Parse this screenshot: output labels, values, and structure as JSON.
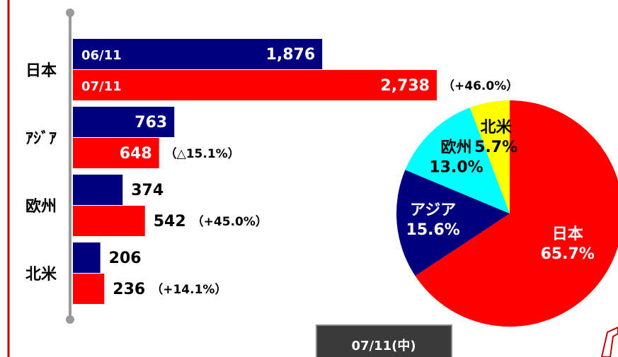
{
  "chart_data": [
    {
      "type": "hbar",
      "categories": [
        "日本",
        "ｱｼﾞｱ",
        "欧州",
        "北米"
      ],
      "series": [
        {
          "name": "06/11",
          "color": "#00007f",
          "values": [
            1876,
            763,
            374,
            206
          ],
          "value_labels": [
            "1,876",
            "763",
            "374",
            "206"
          ]
        },
        {
          "name": "07/11",
          "color": "#ff0000",
          "values": [
            2738,
            648,
            542,
            236
          ],
          "value_labels": [
            "2,738",
            "648",
            "542",
            "236"
          ],
          "annotations": [
            "（+46.0%）",
            "（△15.1%）",
            "（+45.0%）",
            "（+14.1%）"
          ]
        }
      ]
    },
    {
      "type": "pie",
      "categories": [
        "日本",
        "アジア",
        "欧州",
        "北米"
      ],
      "values": [
        65.7,
        15.6,
        13.0,
        5.7
      ],
      "value_labels": [
        "65.7%",
        "15.6%",
        "13.0%",
        "5.7%"
      ],
      "colors": [
        "#ff0000",
        "#00007f",
        "#00ffff",
        "#ffff00"
      ]
    }
  ],
  "button": "07/11(中)"
}
